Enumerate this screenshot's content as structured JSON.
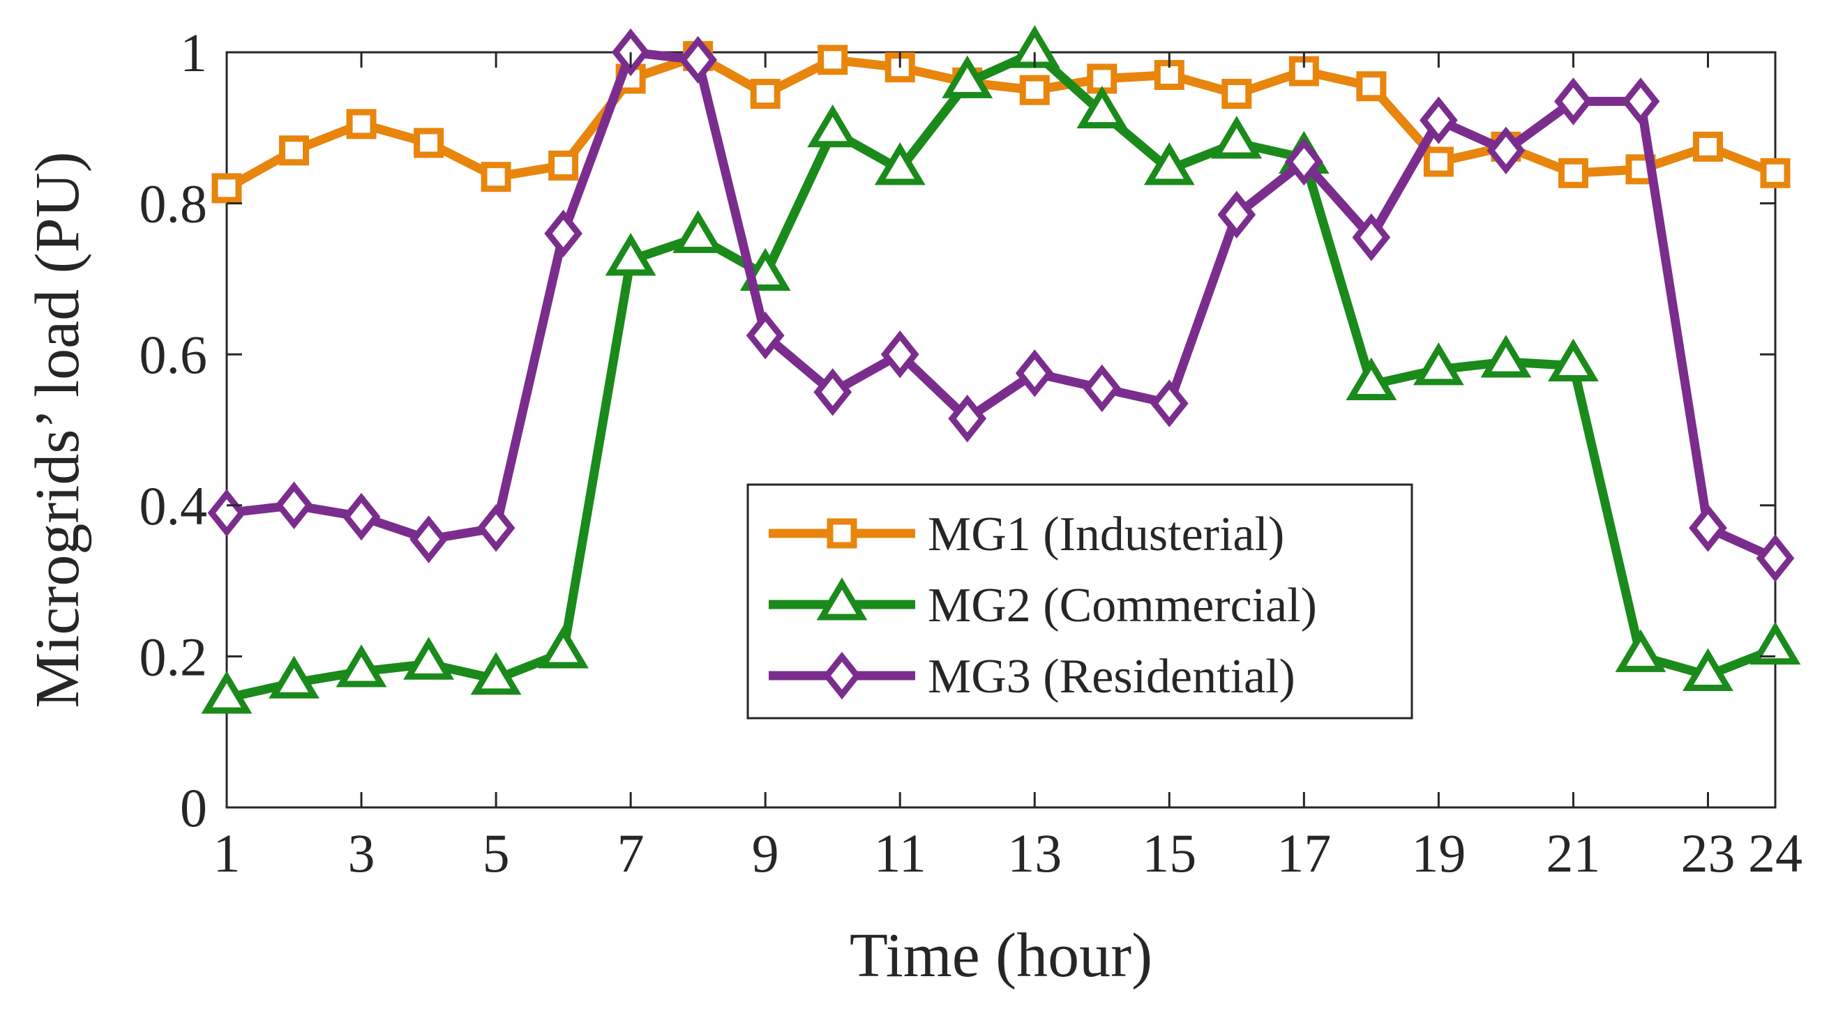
{
  "chart_data": {
    "type": "line",
    "title": "",
    "xlabel": "Time (hour)",
    "ylabel": "Microgrids’ load (PU)",
    "xlim": [
      1,
      24
    ],
    "ylim": [
      0,
      1
    ],
    "grid": false,
    "legend_position": "center",
    "x": [
      1,
      2,
      3,
      4,
      5,
      6,
      7,
      8,
      9,
      10,
      11,
      12,
      13,
      14,
      15,
      16,
      17,
      18,
      19,
      20,
      21,
      22,
      23,
      24
    ],
    "x_ticks": [
      1,
      3,
      5,
      7,
      9,
      11,
      13,
      15,
      17,
      19,
      21,
      23,
      24
    ],
    "x_tick_labels": [
      "1",
      "3",
      "5",
      "7",
      "9",
      "11",
      "13",
      "15",
      "17",
      "19",
      "21",
      "23",
      "24"
    ],
    "y_ticks": [
      0,
      0.2,
      0.4,
      0.6,
      0.8,
      1
    ],
    "y_tick_labels": [
      "0",
      "0.2",
      "0.4",
      "0.6",
      "0.8",
      "1"
    ],
    "series": [
      {
        "name": "MG1 (Industerial)",
        "color": "#E8850C",
        "marker": "square",
        "values": [
          0.82,
          0.87,
          0.905,
          0.88,
          0.835,
          0.85,
          0.965,
          0.995,
          0.945,
          0.99,
          0.98,
          0.96,
          0.95,
          0.965,
          0.97,
          0.945,
          0.975,
          0.955,
          0.855,
          0.875,
          0.84,
          0.845,
          0.875,
          0.84
        ]
      },
      {
        "name": "MG2 (Commercial)",
        "color": "#1A8A1A",
        "marker": "triangle",
        "values": [
          0.145,
          0.165,
          0.18,
          0.19,
          0.17,
          0.205,
          0.725,
          0.755,
          0.705,
          0.895,
          0.845,
          0.96,
          1.0,
          0.92,
          0.845,
          0.88,
          0.86,
          0.56,
          0.58,
          0.59,
          0.585,
          0.2,
          0.175,
          0.21
        ]
      },
      {
        "name": "MG3 (Residential)",
        "color": "#7B2D8E",
        "marker": "diamond",
        "values": [
          0.39,
          0.4,
          0.385,
          0.355,
          0.37,
          0.76,
          1.0,
          0.99,
          0.625,
          0.55,
          0.6,
          0.515,
          0.575,
          0.555,
          0.535,
          0.785,
          0.855,
          0.755,
          0.91,
          0.87,
          0.935,
          0.935,
          0.37,
          0.33
        ]
      }
    ]
  }
}
